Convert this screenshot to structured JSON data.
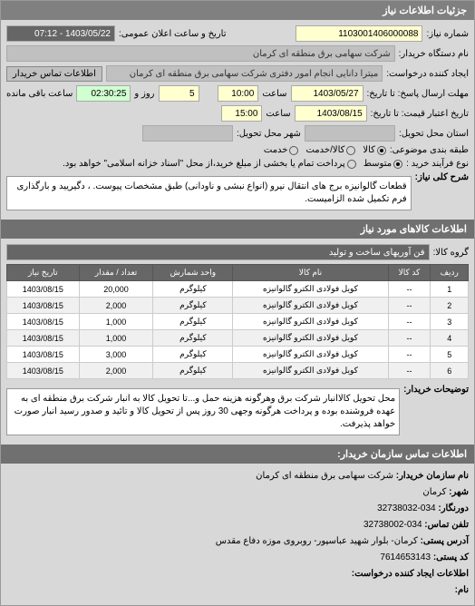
{
  "header": {
    "title": "جزئیات اطلاعات نیاز"
  },
  "top": {
    "number_label": "شماره نیاز:",
    "number_value": "1103001406000088",
    "datetime_label": "تاریخ و ساعت اعلان عمومی:",
    "datetime_value": "1403/05/22 - 07:12",
    "device_label": "نام دستگاه خریدار:",
    "device_value": "شرکت سهامی برق منطقه ای کرمان",
    "requester_label": "ایجاد کننده درخواست:",
    "requester_value": "میترا دانایی انجام امور دفتری شرکت سهامی برق منطقه ای کرمان",
    "contact_btn": "اطلاعات تماس خریدار"
  },
  "deadlines": {
    "send_label": "مهلت ارسال پاسخ: تا تاریخ:",
    "send_date": "1403/05/27",
    "time_label": "ساعت",
    "send_time": "10:00",
    "remain_days": "5",
    "remain_days_label": "روز و",
    "remain_time": "02:30:25",
    "remain_time_label": "ساعت باقی مانده",
    "price_label": "تاریخ اعتبار قیمت: تا تاریخ:",
    "price_date": "1403/08/15",
    "price_time": "15:00",
    "delivery_place_label": "استان محل تحویل:",
    "city_label": "شهر محل تحویل:"
  },
  "packaging": {
    "label": "طبقه بندی موضوعی:",
    "opt1": "کالا",
    "opt2": "کالا/خدمت",
    "opt3": "خدمت"
  },
  "process": {
    "label": "نوع فرآیند خرید :",
    "opt1": "متوسط",
    "opt2": "پرداخت تمام یا بخشی از مبلغ خرید،از محل \"اسناد خزانه اسلامی\" خواهد بود."
  },
  "summary": {
    "label": "شرح کلی نیاز:",
    "text": "قطعات گالوانیزه برج های انتقال نیرو (انواع نبشی و ناودانی) طبق مشخصات پیوست. ، دگیريید و بارگذاری فرم تکمیل شده الزامیست."
  },
  "goods_header": "اطلاعات کالاهای مورد نیاز",
  "goods_group": {
    "label": "گروه کالا:",
    "value": "فن آوریهای ساخت و تولید"
  },
  "table": {
    "columns": [
      "ردیف",
      "کد کالا",
      "نام کالا",
      "واحد شمارش",
      "تعداد / مقدار",
      "تاریخ نیاز"
    ],
    "rows": [
      [
        "1",
        "--",
        "کویل فولادی الکترو گالوانیزه",
        "کیلوگرم",
        "20,000",
        "1403/08/15"
      ],
      [
        "2",
        "--",
        "کویل فولادی الکترو گالوانیزه",
        "کیلوگرم",
        "2,000",
        "1403/08/15"
      ],
      [
        "3",
        "--",
        "کویل فولادی الکترو گالوانیزه",
        "کیلوگرم",
        "1,000",
        "1403/08/15"
      ],
      [
        "4",
        "--",
        "کویل فولادی الکترو گالوانیزه",
        "کیلوگرم",
        "1,000",
        "1403/08/15"
      ],
      [
        "5",
        "--",
        "کویل فولادی الکترو گالوانیزه",
        "کیلوگرم",
        "3,000",
        "1403/08/15"
      ],
      [
        "6",
        "--",
        "کویل فولادی الکترو گالوانیزه",
        "کیلوگرم",
        "2,000",
        "1403/08/15"
      ]
    ]
  },
  "buyer_desc": {
    "label": "توضیحات خریدار:",
    "text": "محل تحویل کالاانبار شرکت برق وهرگونه هزینه حمل و...تا تحویل کالا به انبار شرکت برق منطقه ای به عهده فروشنده بوده و پرداخت هرگونه وجهی 30 روز پس از تحویل کالا و تائید و صدور رسید انبار صورت خواهد پذیرفت."
  },
  "contact_header": "اطلاعات تماس سازمان خریدار:",
  "contact": {
    "org_label": "نام سازمان خریدار:",
    "org_value": "شرکت سهامی برق منطقه ای کرمان",
    "city_label": "شهر:",
    "city_value": "کرمان",
    "fax_label": "دورنگار:",
    "fax_value": "034-32738032",
    "phone_label": "تلفن تماس:",
    "phone_value": "034-32738002",
    "address_label": "آدرس پستی:",
    "address_value": "کرمان- بلوار شهید عباسپور- روبروی موزه دفاع مقدس",
    "postal_label": "کد پستی:",
    "postal_value": "7614653143",
    "creator_label": "اطلاعات ایجاد کننده درخواست:",
    "name_label": "نام:"
  }
}
